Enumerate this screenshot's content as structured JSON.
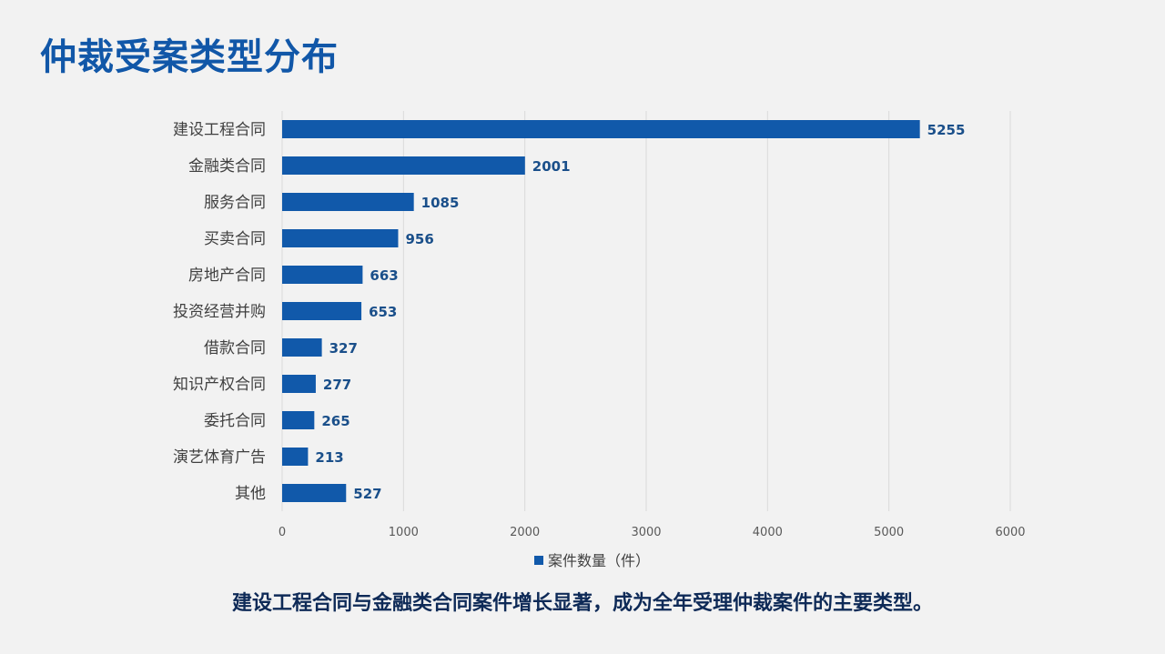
{
  "slide": {
    "title": "仲裁受案类型分布",
    "conclusion": "建设工程合同与金融类合同案件增长显著，成为全年受理仲裁案件的主要类型。"
  },
  "colors": {
    "title": "#1157a8",
    "bar": "#1159aa",
    "conclusion": "#0e2a57"
  },
  "chart_data": {
    "type": "bar",
    "orientation": "horizontal",
    "categories": [
      "建设工程合同",
      "金融类合同",
      "服务合同",
      "买卖合同",
      "房地产合同",
      "投资经营并购",
      "借款合同",
      "知识产权合同",
      "委托合同",
      "演艺体育广告",
      "其他"
    ],
    "series": [
      {
        "name": "案件数量（件）",
        "values": [
          5255,
          2001,
          1085,
          956,
          663,
          653,
          327,
          277,
          265,
          213,
          527
        ]
      }
    ],
    "xlim": [
      0,
      6000
    ],
    "xticks": [
      0,
      1000,
      2000,
      3000,
      4000,
      5000,
      6000
    ],
    "grid": true,
    "data_labels": true,
    "legend": "bottom"
  }
}
